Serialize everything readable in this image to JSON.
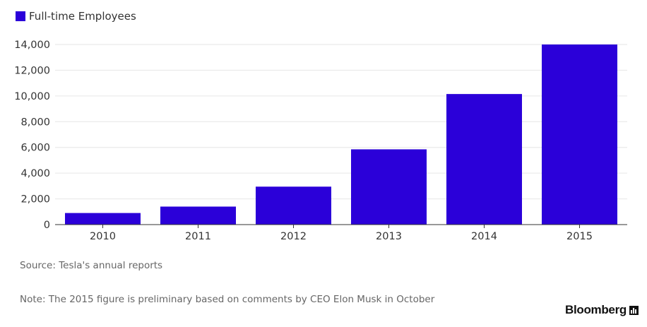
{
  "legend": {
    "label": "Full-time Employees",
    "color": "#2b00d9"
  },
  "chart_data": {
    "type": "bar",
    "categories": [
      "2010",
      "2011",
      "2012",
      "2013",
      "2014",
      "2015"
    ],
    "series": [
      {
        "name": "Full-time Employees",
        "values": [
          900,
          1400,
          2950,
          5850,
          10150,
          14000
        ],
        "color": "#2b00d9"
      }
    ],
    "ylim": [
      0,
      14000
    ],
    "yticks": [
      0,
      2000,
      4000,
      6000,
      8000,
      10000,
      12000,
      14000
    ],
    "ytick_labels": [
      "0",
      "2,000",
      "4,000",
      "6,000",
      "8,000",
      "10,000",
      "12,000",
      "14,000"
    ],
    "grid": true,
    "legend_position": "top-left"
  },
  "source": "Source: Tesla's annual reports",
  "note": "Note: The 2015 figure is preliminary based on comments by CEO Elon Musk in October",
  "brand": "Bloomberg"
}
